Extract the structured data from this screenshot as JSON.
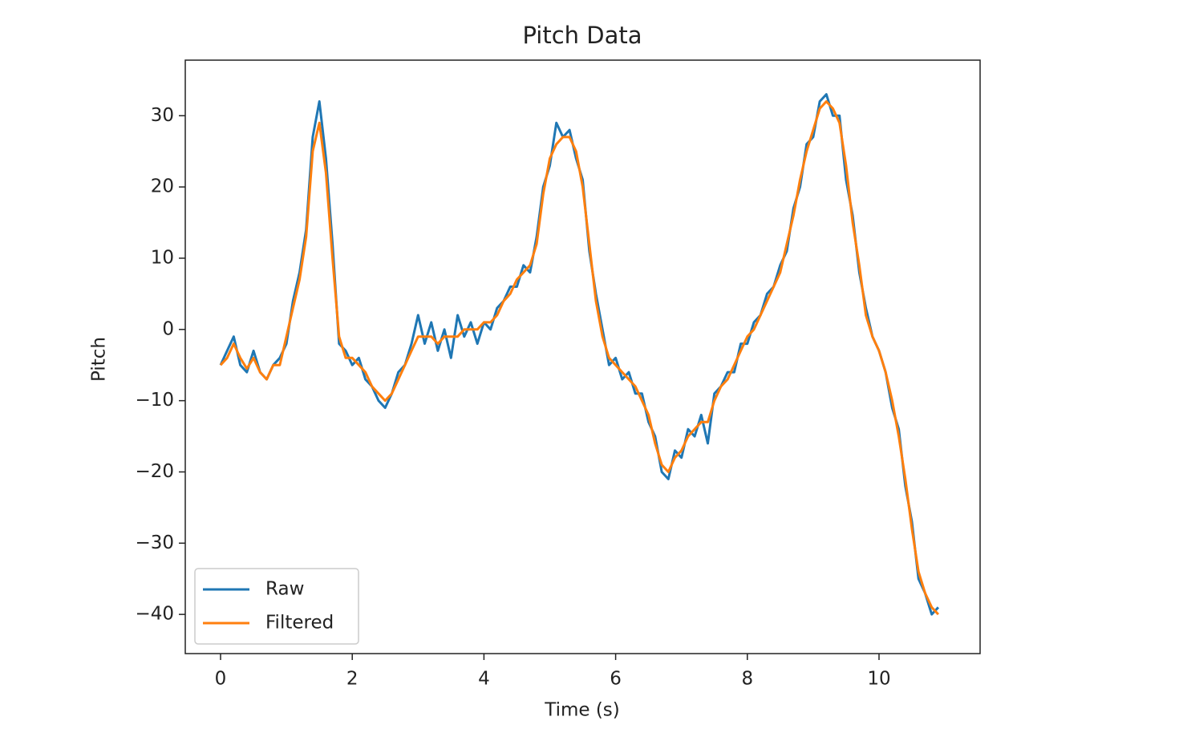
{
  "chart_data": {
    "type": "line",
    "title": "Pitch Data",
    "xlabel": "Time (s)",
    "ylabel": "Pitch",
    "x": [
      0,
      0.1,
      0.2,
      0.3,
      0.4,
      0.5,
      0.6,
      0.7,
      0.8,
      0.9,
      1.0,
      1.1,
      1.2,
      1.3,
      1.4,
      1.5,
      1.6,
      1.7,
      1.8,
      1.9,
      2.0,
      2.1,
      2.2,
      2.3,
      2.4,
      2.5,
      2.6,
      2.7,
      2.8,
      2.9,
      3.0,
      3.1,
      3.2,
      3.3,
      3.4,
      3.5,
      3.6,
      3.7,
      3.8,
      3.9,
      4.0,
      4.1,
      4.2,
      4.3,
      4.4,
      4.5,
      4.6,
      4.7,
      4.8,
      4.9,
      5.0,
      5.1,
      5.2,
      5.3,
      5.4,
      5.5,
      5.6,
      5.7,
      5.8,
      5.9,
      6.0,
      6.1,
      6.2,
      6.3,
      6.4,
      6.5,
      6.6,
      6.7,
      6.8,
      6.9,
      7.0,
      7.1,
      7.2,
      7.3,
      7.4,
      7.5,
      7.6,
      7.7,
      7.8,
      7.9,
      8.0,
      8.1,
      8.2,
      8.3,
      8.4,
      8.5,
      8.6,
      8.7,
      8.8,
      8.9,
      9.0,
      9.1,
      9.2,
      9.3,
      9.4,
      9.5,
      9.6,
      9.7,
      9.8,
      9.9,
      10.0,
      10.1,
      10.2,
      10.3,
      10.4,
      10.5,
      10.6,
      10.7,
      10.8,
      10.9
    ],
    "series": [
      {
        "name": "Raw",
        "color": "#1f77b4",
        "values": [
          -5,
          -3,
          -1,
          -5,
          -6,
          -3,
          -6,
          -7,
          -5,
          -4,
          -2,
          4,
          8,
          14,
          27,
          32,
          24,
          12,
          -2,
          -3,
          -5,
          -4,
          -7,
          -8,
          -10,
          -11,
          -9,
          -6,
          -5,
          -2,
          2,
          -2,
          1,
          -3,
          0,
          -4,
          2,
          -1,
          1,
          -2,
          1,
          0,
          3,
          4,
          6,
          6,
          9,
          8,
          13,
          20,
          23,
          29,
          27,
          28,
          24,
          21,
          11,
          5,
          0,
          -5,
          -4,
          -7,
          -6,
          -9,
          -9,
          -13,
          -15,
          -20,
          -21,
          -17,
          -18,
          -14,
          -15,
          -12,
          -16,
          -9,
          -8,
          -6,
          -6,
          -2,
          -2,
          1,
          2,
          5,
          6,
          9,
          11,
          17,
          20,
          26,
          27,
          32,
          33,
          30,
          30,
          21,
          16,
          8,
          3,
          -1,
          -3,
          -6,
          -11,
          -14,
          -22,
          -27,
          -35,
          -37,
          -40,
          -39
        ]
      },
      {
        "name": "Filtered",
        "color": "#ff7f0e",
        "values": [
          -5,
          -4,
          -2,
          -4,
          -5.5,
          -4,
          -6,
          -7,
          -5,
          -5,
          -1,
          3,
          7,
          13,
          25,
          29,
          22,
          10,
          -1,
          -4,
          -4,
          -5,
          -6,
          -8,
          -9,
          -10,
          -9,
          -7,
          -5,
          -3,
          -1,
          -1,
          -1,
          -2,
          -1,
          -1,
          -1,
          0,
          0,
          0,
          1,
          1,
          2,
          4,
          5,
          7,
          8,
          9,
          12,
          19,
          24,
          26,
          27,
          27,
          25,
          20,
          12,
          4,
          -1,
          -4,
          -5,
          -6,
          -7,
          -8,
          -10,
          -12,
          -16,
          -19,
          -20,
          -18,
          -17,
          -15,
          -14,
          -13,
          -13,
          -10,
          -8,
          -7,
          -5,
          -3,
          -1,
          0,
          2,
          4,
          6,
          8,
          12,
          16,
          21,
          25,
          28,
          31,
          32,
          31,
          29,
          23,
          15,
          9,
          2,
          -1,
          -3,
          -6,
          -10,
          -15,
          -21,
          -28,
          -34,
          -37,
          -39,
          -40
        ]
      }
    ],
    "xlim": [
      -0.536,
      11.535
    ],
    "ylim": [
      -45.5,
      37.8
    ],
    "xticks": [
      0,
      2,
      4,
      6,
      8,
      10
    ],
    "yticks": [
      {
        "value": -40,
        "label": "−40"
      },
      {
        "value": -30,
        "label": "−30"
      },
      {
        "value": -20,
        "label": "−20"
      },
      {
        "value": -10,
        "label": "−10"
      },
      0,
      10,
      20,
      30
    ],
    "legend": "lower left"
  }
}
